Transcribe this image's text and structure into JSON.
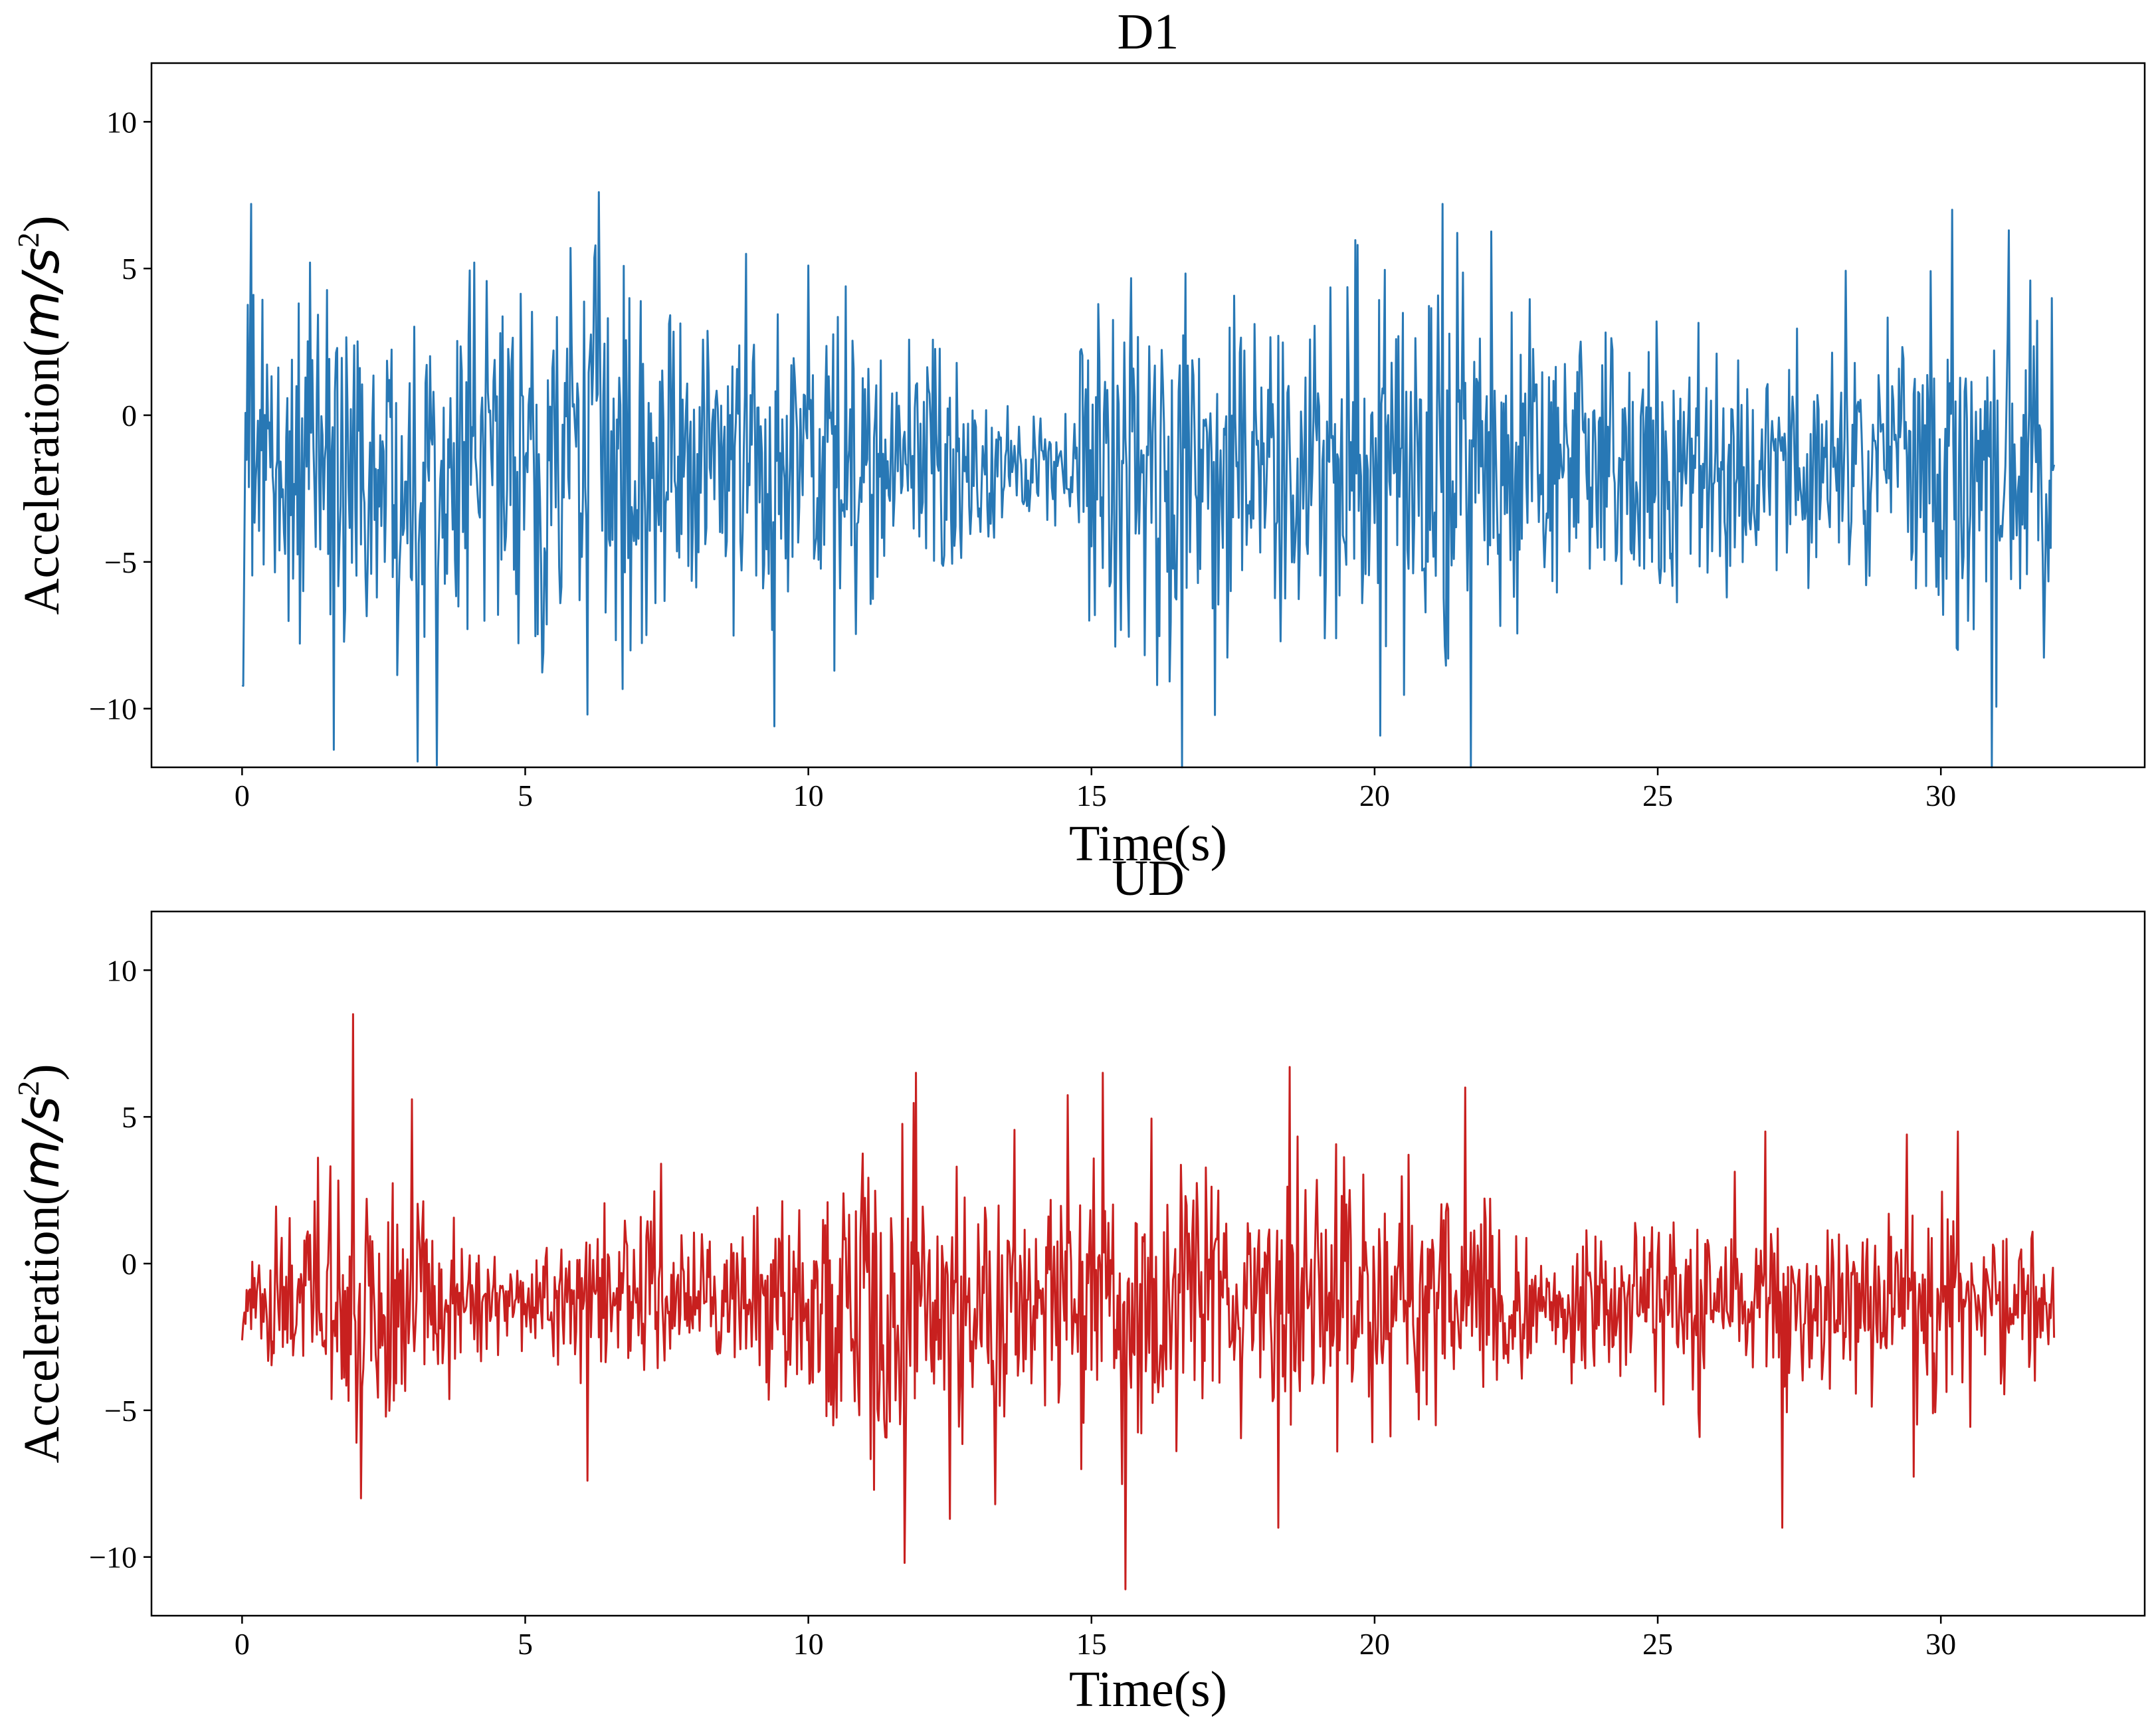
{
  "chart_data": [
    {
      "type": "line",
      "title": "D1",
      "xlabel": "Time(s)",
      "ylabel": "Acceleration",
      "ylabel_unit_base": "m/s",
      "ylabel_unit_exp": "2",
      "xlim": [
        -1.6,
        33.6
      ],
      "ylim": [
        -12,
        12
      ],
      "xticks": [
        0,
        5,
        10,
        15,
        20,
        25,
        30
      ],
      "yticks": [
        -10,
        -5,
        0,
        5,
        10
      ],
      "xtick_labels": [
        "0",
        "5",
        "10",
        "15",
        "20",
        "25",
        "30"
      ],
      "ytick_labels": [
        "−10",
        "−5",
        "0",
        "5",
        "10"
      ],
      "grid": false,
      "series": [
        {
          "color": "#2878b5",
          "x_range": [
            0,
            32
          ],
          "samples_per_second": 50,
          "envelope": [
            [
              0,
              5.5
            ],
            [
              0.5,
              4.8
            ],
            [
              2,
              4.6
            ],
            [
              4,
              4.9
            ],
            [
              6,
              5.6
            ],
            [
              8,
              4.6
            ],
            [
              10,
              4.8
            ],
            [
              12,
              3.9
            ],
            [
              13.5,
              2.2
            ],
            [
              14.6,
              1.3
            ],
            [
              14.9,
              5.0
            ],
            [
              16,
              5.4
            ],
            [
              18,
              4.6
            ],
            [
              20,
              5.2
            ],
            [
              22,
              5.4
            ],
            [
              23.5,
              3.2
            ],
            [
              25,
              4.6
            ],
            [
              27,
              3.0
            ],
            [
              29,
              3.8
            ],
            [
              31,
              5.8
            ],
            [
              32,
              5.2
            ]
          ],
          "x": [
            0.0,
            0.15,
            0.2,
            1.62,
            3.1,
            4.1,
            5.8,
            6.1,
            6.3,
            8.9,
            9.4,
            10.0,
            16.6,
            19.7,
            21.2,
            21.7,
            30.2,
            30.9,
            31.2
          ],
          "values": [
            -9.2,
            7.2,
            4.1,
            -11.4,
            -11.8,
            5.2,
            5.7,
            -10.2,
            7.6,
            5.5,
            -10.6,
            5.1,
            -12.0,
            5.8,
            7.2,
            -12.0,
            7.0,
            -12.0,
            6.3
          ]
        }
      ]
    },
    {
      "type": "line",
      "title": "UD",
      "xlabel": "Time(s)",
      "ylabel": "Acceleration",
      "ylabel_unit_base": "m/s",
      "ylabel_unit_exp": "2",
      "xlim": [
        -1.6,
        33.6
      ],
      "ylim": [
        -12,
        12
      ],
      "xticks": [
        0,
        5,
        10,
        15,
        20,
        25,
        30
      ],
      "yticks": [
        -10,
        -5,
        0,
        5,
        10
      ],
      "xtick_labels": [
        "0",
        "5",
        "10",
        "15",
        "20",
        "25",
        "30"
      ],
      "ytick_labels": [
        "−10",
        "−5",
        "0",
        "5",
        "10"
      ],
      "grid": false,
      "series": [
        {
          "color": "#c8201f",
          "x_range": [
            0,
            32
          ],
          "samples_per_second": 50,
          "envelope": [
            [
              0,
              1.2
            ],
            [
              0.4,
              1.6
            ],
            [
              0.6,
              3.2
            ],
            [
              1.5,
              3.8
            ],
            [
              2.5,
              3.6
            ],
            [
              4,
              1.8
            ],
            [
              5,
              1.4
            ],
            [
              6.5,
              2.6
            ],
            [
              8,
              1.4
            ],
            [
              9.2,
              2.4
            ],
            [
              10,
              4.0
            ],
            [
              11.6,
              4.8
            ],
            [
              12.5,
              4.2
            ],
            [
              14,
              3.0
            ],
            [
              15.5,
              4.6
            ],
            [
              16.5,
              3.2
            ],
            [
              18,
              3.8
            ],
            [
              19,
              4.0
            ],
            [
              21,
              3.0
            ],
            [
              23,
              1.8
            ],
            [
              24.5,
              2.2
            ],
            [
              26,
              3.0
            ],
            [
              27.5,
              2.6
            ],
            [
              28.5,
              2.2
            ],
            [
              30,
              3.0
            ],
            [
              31,
              2.5
            ],
            [
              32,
              1.6
            ]
          ],
          "x": [
            1.95,
            2.1,
            3.0,
            6.1,
            7.4,
            11.7,
            11.9,
            12.5,
            13.3,
            15.2,
            15.6,
            18.3,
            18.5,
            21.6,
            26.9,
            27.2,
            29.4,
            30.3
          ],
          "values": [
            8.5,
            -8.0,
            5.6,
            -7.4,
            3.4,
            -10.2,
            6.5,
            -8.7,
            -8.2,
            6.5,
            -11.1,
            -9.0,
            6.7,
            6.0,
            4.5,
            -9.0,
            4.4,
            4.5
          ]
        }
      ]
    }
  ]
}
